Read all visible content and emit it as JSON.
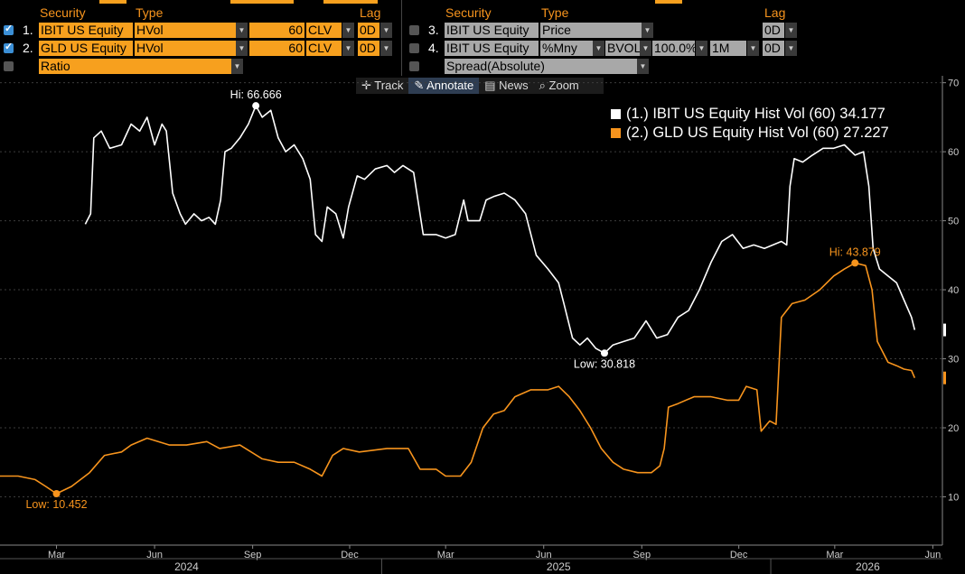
{
  "header": {
    "col_security": "Security",
    "col_type": "Type",
    "col_lag": "Lag"
  },
  "rows_left": [
    {
      "num": "1.",
      "security": "IBIT US Equity",
      "type": "HVol",
      "period": "60",
      "field": "CLV",
      "lag": "0D"
    },
    {
      "num": "2.",
      "security": "GLD US Equity",
      "type": "HVol",
      "period": "60",
      "field": "CLV",
      "lag": "0D"
    }
  ],
  "ratio_label": "Ratio",
  "rows_right": [
    {
      "num": "3.",
      "security": "IBIT US Equity",
      "type": "Price",
      "lag": "0D"
    },
    {
      "num": "4.",
      "security": "IBIT US Equity",
      "type": "%Mny",
      "bvol": "BVOL",
      "pct": "100.0%",
      "tenor": "1M",
      "lag": "0D"
    }
  ],
  "spread_label": "Spread(Absolute)",
  "toolbar": {
    "track": "Track",
    "annotate": "Annotate",
    "news": "News",
    "zoom": "Zoom"
  },
  "chart_data": {
    "type": "line",
    "ylim": [
      3,
      71
    ],
    "y_ticks": [
      10,
      20,
      30,
      40,
      50,
      60,
      70
    ],
    "x_ticks": [
      {
        "label": "Mar",
        "date": "2024-03-01"
      },
      {
        "label": "Jun",
        "date": "2024-06-01"
      },
      {
        "label": "Sep",
        "date": "2024-09-01"
      },
      {
        "label": "Dec",
        "date": "2024-12-01"
      },
      {
        "label": "Mar",
        "date": "2025-03-01"
      },
      {
        "label": "Jun",
        "date": "2025-06-01"
      },
      {
        "label": "Sep",
        "date": "2025-09-01"
      },
      {
        "label": "Dec",
        "date": "2025-12-01"
      },
      {
        "label": "Mar",
        "date": "2026-03-01"
      },
      {
        "label": "Jun",
        "date": "2026-06-01"
      }
    ],
    "years": [
      {
        "label": "2024",
        "date": "2024-07-01"
      },
      {
        "label": "2025",
        "date": "2025-06-15"
      },
      {
        "label": "2026",
        "date": "2026-04-01"
      }
    ],
    "year_dividers": [
      "2024-12-31",
      "2025-12-31"
    ],
    "x_range": [
      "2024-01-08",
      "2026-06-10"
    ],
    "series": [
      {
        "name": "IBIT US Equity Hist Vol (60)",
        "legend": "(1.) IBIT US Equity Hist Vol (60)",
        "last": "34.177",
        "color": "#ffffff",
        "points": [
          [
            "2024-03-28",
            49.5
          ],
          [
            "2024-04-02",
            51
          ],
          [
            "2024-04-05",
            62
          ],
          [
            "2024-04-12",
            63
          ],
          [
            "2024-04-20",
            60.5
          ],
          [
            "2024-05-01",
            61
          ],
          [
            "2024-05-10",
            64
          ],
          [
            "2024-05-18",
            63
          ],
          [
            "2024-05-25",
            65
          ],
          [
            "2024-06-01",
            61
          ],
          [
            "2024-06-08",
            64
          ],
          [
            "2024-06-12",
            63
          ],
          [
            "2024-06-18",
            54
          ],
          [
            "2024-06-25",
            51
          ],
          [
            "2024-06-30",
            49.5
          ],
          [
            "2024-07-08",
            51
          ],
          [
            "2024-07-15",
            50
          ],
          [
            "2024-07-22",
            50.5
          ],
          [
            "2024-07-28",
            49.5
          ],
          [
            "2024-08-02",
            53
          ],
          [
            "2024-08-06",
            60
          ],
          [
            "2024-08-12",
            60.5
          ],
          [
            "2024-08-20",
            62
          ],
          [
            "2024-08-28",
            64
          ],
          [
            "2024-09-04",
            66.666
          ],
          [
            "2024-09-10",
            65
          ],
          [
            "2024-09-18",
            66
          ],
          [
            "2024-09-25",
            62
          ],
          [
            "2024-10-02",
            60
          ],
          [
            "2024-10-10",
            61
          ],
          [
            "2024-10-18",
            59
          ],
          [
            "2024-10-25",
            56
          ],
          [
            "2024-10-30",
            48
          ],
          [
            "2024-11-05",
            47
          ],
          [
            "2024-11-10",
            52
          ],
          [
            "2024-11-18",
            51
          ],
          [
            "2024-11-25",
            47.5
          ],
          [
            "2024-11-30",
            52
          ],
          [
            "2024-12-08",
            56.5
          ],
          [
            "2024-12-15",
            56
          ],
          [
            "2024-12-25",
            57.5
          ],
          [
            "2025-01-05",
            58
          ],
          [
            "2025-01-12",
            57
          ],
          [
            "2025-01-20",
            58
          ],
          [
            "2025-01-30",
            57
          ],
          [
            "2025-02-08",
            48
          ],
          [
            "2025-02-20",
            48
          ],
          [
            "2025-03-01",
            47.5
          ],
          [
            "2025-03-10",
            48
          ],
          [
            "2025-03-18",
            53
          ],
          [
            "2025-03-22",
            50
          ],
          [
            "2025-04-02",
            50
          ],
          [
            "2025-04-08",
            53
          ],
          [
            "2025-04-15",
            53.5
          ],
          [
            "2025-04-25",
            54
          ],
          [
            "2025-05-05",
            53
          ],
          [
            "2025-05-15",
            51
          ],
          [
            "2025-05-25",
            45
          ],
          [
            "2025-06-05",
            43
          ],
          [
            "2025-06-15",
            41
          ],
          [
            "2025-06-20",
            38
          ],
          [
            "2025-06-28",
            33
          ],
          [
            "2025-07-05",
            32
          ],
          [
            "2025-07-12",
            33
          ],
          [
            "2025-07-20",
            31.5
          ],
          [
            "2025-07-28",
            30.818
          ],
          [
            "2025-08-05",
            32
          ],
          [
            "2025-08-15",
            32.5
          ],
          [
            "2025-08-25",
            33
          ],
          [
            "2025-09-05",
            35.5
          ],
          [
            "2025-09-15",
            33
          ],
          [
            "2025-09-25",
            33.5
          ],
          [
            "2025-10-05",
            36
          ],
          [
            "2025-10-15",
            37
          ],
          [
            "2025-10-25",
            40
          ],
          [
            "2025-11-05",
            44
          ],
          [
            "2025-11-15",
            47
          ],
          [
            "2025-11-25",
            48
          ],
          [
            "2025-12-05",
            46
          ],
          [
            "2025-12-15",
            46.5
          ],
          [
            "2025-12-25",
            46
          ],
          [
            "2026-01-02",
            46.5
          ],
          [
            "2026-01-10",
            47
          ],
          [
            "2026-01-15",
            46.5
          ],
          [
            "2026-01-18",
            55
          ],
          [
            "2026-01-22",
            59
          ],
          [
            "2026-01-30",
            58.5
          ],
          [
            "2026-02-08",
            59.5
          ],
          [
            "2026-02-18",
            60.5
          ],
          [
            "2026-02-28",
            60.5
          ],
          [
            "2026-03-10",
            61
          ],
          [
            "2026-03-20",
            59.5
          ],
          [
            "2026-03-28",
            60
          ],
          [
            "2026-04-02",
            55
          ],
          [
            "2026-04-06",
            46
          ],
          [
            "2026-04-12",
            43
          ],
          [
            "2026-04-20",
            42
          ],
          [
            "2026-04-28",
            41
          ],
          [
            "2026-05-05",
            38.5
          ],
          [
            "2026-05-12",
            36
          ],
          [
            "2026-05-15",
            34.177
          ]
        ]
      },
      {
        "name": "GLD US Equity Hist Vol (60)",
        "legend": "(2.) GLD US Equity Hist Vol (60)",
        "last": "27.227",
        "color": "#f7941d",
        "points": [
          [
            "2024-01-08",
            13
          ],
          [
            "2024-01-25",
            13
          ],
          [
            "2024-02-10",
            12.5
          ],
          [
            "2024-02-20",
            11.5
          ],
          [
            "2024-03-01",
            10.452
          ],
          [
            "2024-03-15",
            11.5
          ],
          [
            "2024-04-01",
            13.5
          ],
          [
            "2024-04-15",
            16
          ],
          [
            "2024-05-01",
            16.5
          ],
          [
            "2024-05-10",
            17.5
          ],
          [
            "2024-05-25",
            18.5
          ],
          [
            "2024-06-15",
            17.5
          ],
          [
            "2024-07-01",
            17.5
          ],
          [
            "2024-07-20",
            18
          ],
          [
            "2024-08-01",
            17
          ],
          [
            "2024-08-20",
            17.5
          ],
          [
            "2024-09-10",
            15.5
          ],
          [
            "2024-09-25",
            15
          ],
          [
            "2024-10-10",
            15
          ],
          [
            "2024-10-25",
            14
          ],
          [
            "2024-11-05",
            13
          ],
          [
            "2024-11-15",
            16
          ],
          [
            "2024-11-25",
            17
          ],
          [
            "2024-12-10",
            16.5
          ],
          [
            "2025-01-05",
            17
          ],
          [
            "2025-01-25",
            17
          ],
          [
            "2025-02-05",
            14
          ],
          [
            "2025-02-20",
            14
          ],
          [
            "2025-03-01",
            13
          ],
          [
            "2025-03-15",
            13
          ],
          [
            "2025-03-25",
            15
          ],
          [
            "2025-04-05",
            20
          ],
          [
            "2025-04-15",
            22
          ],
          [
            "2025-04-25",
            22.5
          ],
          [
            "2025-05-05",
            24.5
          ],
          [
            "2025-05-20",
            25.5
          ],
          [
            "2025-06-05",
            25.5
          ],
          [
            "2025-06-15",
            26
          ],
          [
            "2025-06-25",
            24.5
          ],
          [
            "2025-07-05",
            22.5
          ],
          [
            "2025-07-15",
            20
          ],
          [
            "2025-07-25",
            17
          ],
          [
            "2025-08-05",
            15
          ],
          [
            "2025-08-15",
            14
          ],
          [
            "2025-08-28",
            13.5
          ],
          [
            "2025-09-10",
            13.5
          ],
          [
            "2025-09-18",
            14.5
          ],
          [
            "2025-09-22",
            17
          ],
          [
            "2025-09-26",
            23
          ],
          [
            "2025-10-05",
            23.5
          ],
          [
            "2025-10-20",
            24.5
          ],
          [
            "2025-11-05",
            24.5
          ],
          [
            "2025-11-20",
            24
          ],
          [
            "2025-12-01",
            24
          ],
          [
            "2025-12-08",
            26
          ],
          [
            "2025-12-18",
            25.5
          ],
          [
            "2025-12-22",
            19.5
          ],
          [
            "2025-12-30",
            21
          ],
          [
            "2026-01-05",
            20.5
          ],
          [
            "2026-01-10",
            36
          ],
          [
            "2026-01-20",
            38
          ],
          [
            "2026-02-01",
            38.5
          ],
          [
            "2026-02-15",
            40
          ],
          [
            "2026-02-28",
            42
          ],
          [
            "2026-03-10",
            43
          ],
          [
            "2026-03-20",
            43.879
          ],
          [
            "2026-03-30",
            43.5
          ],
          [
            "2026-04-05",
            40
          ],
          [
            "2026-04-10",
            32.5
          ],
          [
            "2026-04-20",
            29.5
          ],
          [
            "2026-04-28",
            29
          ],
          [
            "2026-05-05",
            28.5
          ],
          [
            "2026-05-12",
            28.3
          ],
          [
            "2026-05-15",
            27.227
          ]
        ]
      }
    ],
    "annotations": [
      {
        "text": "Hi: 66.666",
        "series": 0,
        "date": "2024-09-04",
        "value": 66.666,
        "pos": "above"
      },
      {
        "text": "Low: 30.818",
        "series": 0,
        "date": "2025-07-28",
        "value": 30.818,
        "pos": "below"
      },
      {
        "text": "Low: 10.452",
        "series": 1,
        "date": "2024-03-01",
        "value": 10.452,
        "pos": "below"
      },
      {
        "text": "Hi: 43.879",
        "series": 1,
        "date": "2026-03-20",
        "value": 43.879,
        "pos": "above"
      }
    ]
  }
}
